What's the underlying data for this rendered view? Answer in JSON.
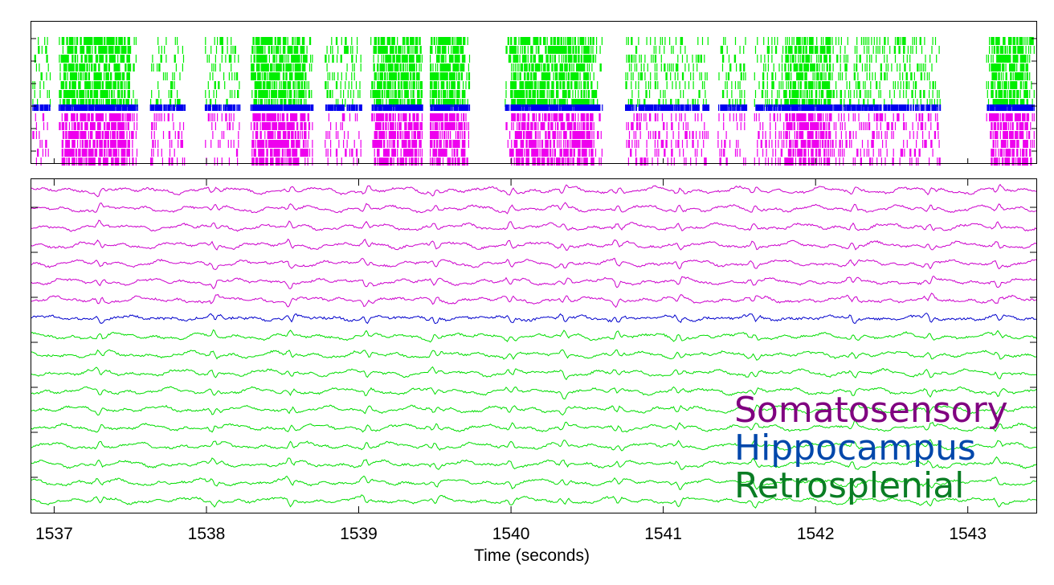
{
  "chart_data": [
    {
      "type": "raster",
      "panel": "spike-raster",
      "x_range": [
        1536.85,
        1543.45
      ],
      "series": [
        {
          "name": "Retrosplenial",
          "color": "#00ee00",
          "rows": 8
        },
        {
          "name": "Hippocampus",
          "color": "#0000ee",
          "rows": 1
        },
        {
          "name": "Somatosensory",
          "color": "#ee00ee",
          "rows": 6
        }
      ],
      "gaps": [
        [
          1536.98,
          1537.03
        ],
        [
          1537.55,
          1537.63
        ],
        [
          1537.86,
          1537.99
        ],
        [
          1538.22,
          1538.29
        ],
        [
          1538.7,
          1538.78
        ],
        [
          1539.02,
          1539.08
        ],
        [
          1539.42,
          1539.47
        ],
        [
          1539.73,
          1539.96
        ],
        [
          1540.6,
          1540.75
        ],
        [
          1541.3,
          1541.36
        ],
        [
          1541.55,
          1541.6
        ],
        [
          1542.82,
          1543.12
        ]
      ],
      "bursts": [
        [
          1537.05,
          1537.5
        ],
        [
          1538.3,
          1538.66
        ],
        [
          1539.1,
          1539.7
        ],
        [
          1540.0,
          1540.55
        ],
        [
          1541.8,
          1542.1
        ],
        [
          1543.15,
          1543.4
        ]
      ]
    },
    {
      "type": "line",
      "panel": "lfp-traces",
      "xlabel": "Time (seconds)",
      "xlim": [
        1536.85,
        1543.45
      ],
      "x_ticks": [
        1537,
        1538,
        1539,
        1540,
        1541,
        1542,
        1543
      ],
      "x_tick_labels": [
        "1537",
        "1538",
        "1539",
        "1540",
        "1541",
        "1542",
        "1543"
      ],
      "series": [
        {
          "name": "Somatosensory",
          "color": "#cc00cc",
          "count": 7
        },
        {
          "name": "Hippocampus",
          "color": "#0000cc",
          "count": 1
        },
        {
          "name": "Retrosplenial",
          "color": "#00dd00",
          "count": 10
        }
      ],
      "legend": {
        "position": "bottom-right",
        "entries": [
          {
            "label": "Somatosensory",
            "color": "#800080"
          },
          {
            "label": "Hippocampus",
            "color": "#0047ab"
          },
          {
            "label": "Retrosplenial",
            "color": "#0a7d24"
          }
        ]
      }
    }
  ]
}
